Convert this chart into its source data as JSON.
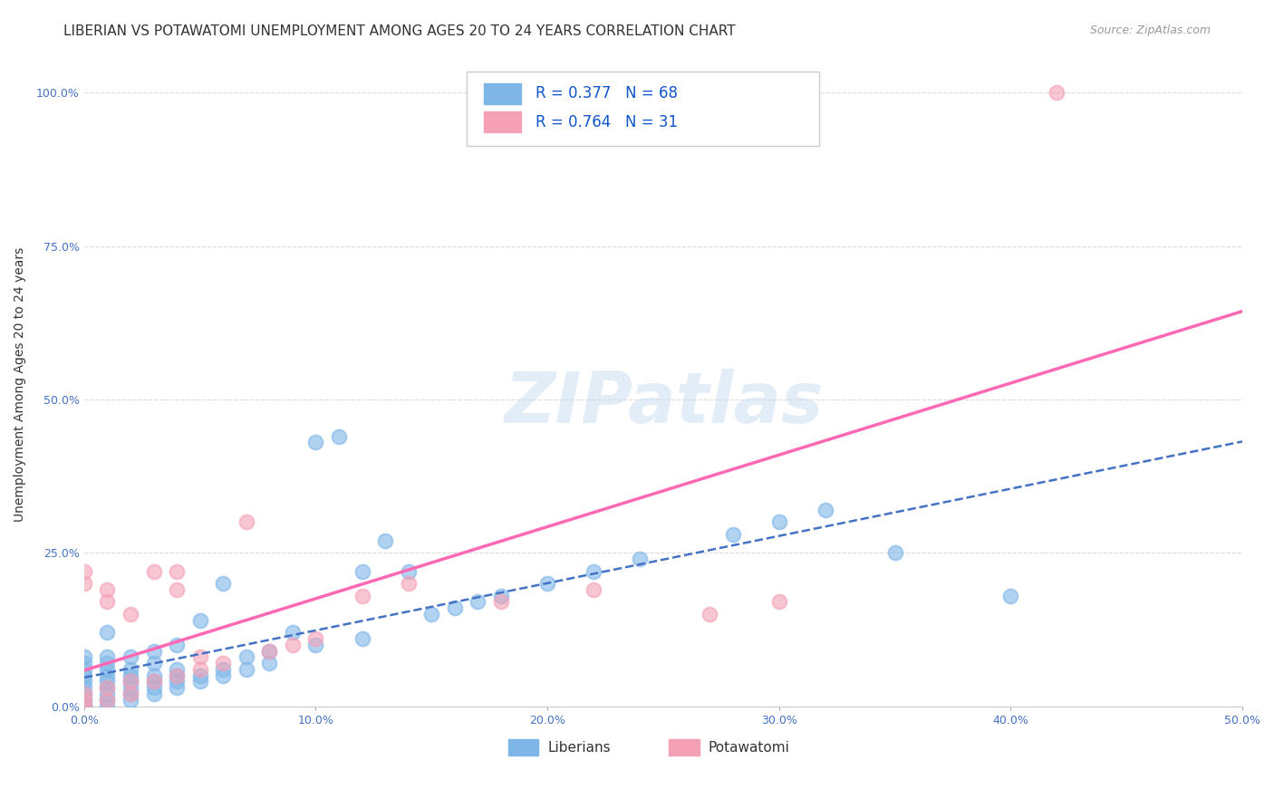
{
  "title": "LIBERIAN VS POTAWATOMI UNEMPLOYMENT AMONG AGES 20 TO 24 YEARS CORRELATION CHART",
  "source": "Source: ZipAtlas.com",
  "ylabel": "Unemployment Among Ages 20 to 24 years",
  "xlim": [
    0.0,
    0.5
  ],
  "ylim": [
    0.0,
    1.05
  ],
  "yticks": [
    0.0,
    0.25,
    0.5,
    0.75,
    1.0
  ],
  "ytick_labels": [
    "0.0%",
    "25.0%",
    "50.0%",
    "75.0%",
    "100.0%"
  ],
  "xticks": [
    0.0,
    0.1,
    0.2,
    0.3,
    0.4,
    0.5
  ],
  "xtick_labels": [
    "0.0%",
    "10.0%",
    "20.0%",
    "30.0%",
    "40.0%",
    "50.0%"
  ],
  "liberian_color": "#7EB6E8",
  "potawatomi_color": "#F4A0B5",
  "liberian_line_color": "#4472C4",
  "potawatomi_line_color": "#FF69B4",
  "R_liberian": 0.377,
  "N_liberian": 68,
  "R_potawatomi": 0.764,
  "N_potawatomi": 31,
  "liberian_x": [
    0.0,
    0.0,
    0.0,
    0.0,
    0.0,
    0.0,
    0.0,
    0.0,
    0.0,
    0.0,
    0.01,
    0.01,
    0.01,
    0.01,
    0.01,
    0.01,
    0.01,
    0.01,
    0.01,
    0.01,
    0.02,
    0.02,
    0.02,
    0.02,
    0.02,
    0.02,
    0.02,
    0.03,
    0.03,
    0.03,
    0.03,
    0.03,
    0.03,
    0.04,
    0.04,
    0.04,
    0.04,
    0.04,
    0.05,
    0.05,
    0.05,
    0.06,
    0.06,
    0.06,
    0.07,
    0.07,
    0.08,
    0.08,
    0.09,
    0.1,
    0.1,
    0.11,
    0.12,
    0.12,
    0.13,
    0.14,
    0.15,
    0.16,
    0.17,
    0.18,
    0.2,
    0.22,
    0.24,
    0.28,
    0.3,
    0.32,
    0.35,
    0.4
  ],
  "liberian_y": [
    0.0,
    0.0,
    0.01,
    0.02,
    0.03,
    0.04,
    0.05,
    0.06,
    0.07,
    0.08,
    0.0,
    0.01,
    0.02,
    0.03,
    0.04,
    0.05,
    0.06,
    0.07,
    0.08,
    0.12,
    0.01,
    0.02,
    0.03,
    0.04,
    0.05,
    0.06,
    0.08,
    0.02,
    0.03,
    0.04,
    0.05,
    0.07,
    0.09,
    0.03,
    0.04,
    0.05,
    0.06,
    0.1,
    0.04,
    0.05,
    0.14,
    0.05,
    0.06,
    0.2,
    0.06,
    0.08,
    0.07,
    0.09,
    0.12,
    0.1,
    0.43,
    0.44,
    0.11,
    0.22,
    0.27,
    0.22,
    0.15,
    0.16,
    0.17,
    0.18,
    0.2,
    0.22,
    0.24,
    0.28,
    0.3,
    0.32,
    0.25,
    0.18
  ],
  "potawatomi_x": [
    0.0,
    0.0,
    0.0,
    0.0,
    0.0,
    0.01,
    0.01,
    0.01,
    0.01,
    0.02,
    0.02,
    0.02,
    0.03,
    0.03,
    0.04,
    0.04,
    0.04,
    0.05,
    0.05,
    0.06,
    0.07,
    0.08,
    0.09,
    0.1,
    0.12,
    0.14,
    0.18,
    0.22,
    0.27,
    0.3,
    0.42
  ],
  "potawatomi_y": [
    0.0,
    0.01,
    0.02,
    0.2,
    0.22,
    0.01,
    0.03,
    0.17,
    0.19,
    0.02,
    0.04,
    0.15,
    0.04,
    0.22,
    0.05,
    0.19,
    0.22,
    0.06,
    0.08,
    0.07,
    0.3,
    0.09,
    0.1,
    0.11,
    0.18,
    0.2,
    0.17,
    0.19,
    0.15,
    0.17,
    1.0
  ],
  "watermark": "ZIPatlas",
  "background_color": "#FFFFFF",
  "grid_color": "#CCCCCC",
  "title_fontsize": 11,
  "axis_label_fontsize": 10,
  "tick_fontsize": 9,
  "legend_fontsize": 12
}
